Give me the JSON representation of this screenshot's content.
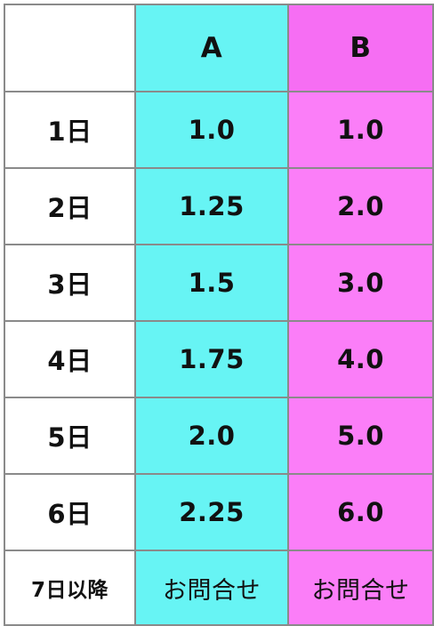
{
  "table": {
    "headers": [
      "",
      "A",
      "B"
    ],
    "rows": [
      {
        "label": "1日",
        "a": "1.0",
        "b": "1.0"
      },
      {
        "label": "2日",
        "a": "1.25",
        "b": "2.0"
      },
      {
        "label": "3日",
        "a": "1.5",
        "b": "3.0"
      },
      {
        "label": "4日",
        "a": "1.75",
        "b": "4.0"
      },
      {
        "label": "5日",
        "a": "2.0",
        "b": "5.0"
      },
      {
        "label": "6日",
        "a": "2.25",
        "b": "6.0"
      },
      {
        "label": "7日以降",
        "a": "お問合せ",
        "b": "お問合せ"
      }
    ]
  },
  "colors": {
    "column_a": "#67f4f4",
    "column_b": "#fb7ef8",
    "header_b": "#f66ef3",
    "border": "#8a8a8a"
  }
}
